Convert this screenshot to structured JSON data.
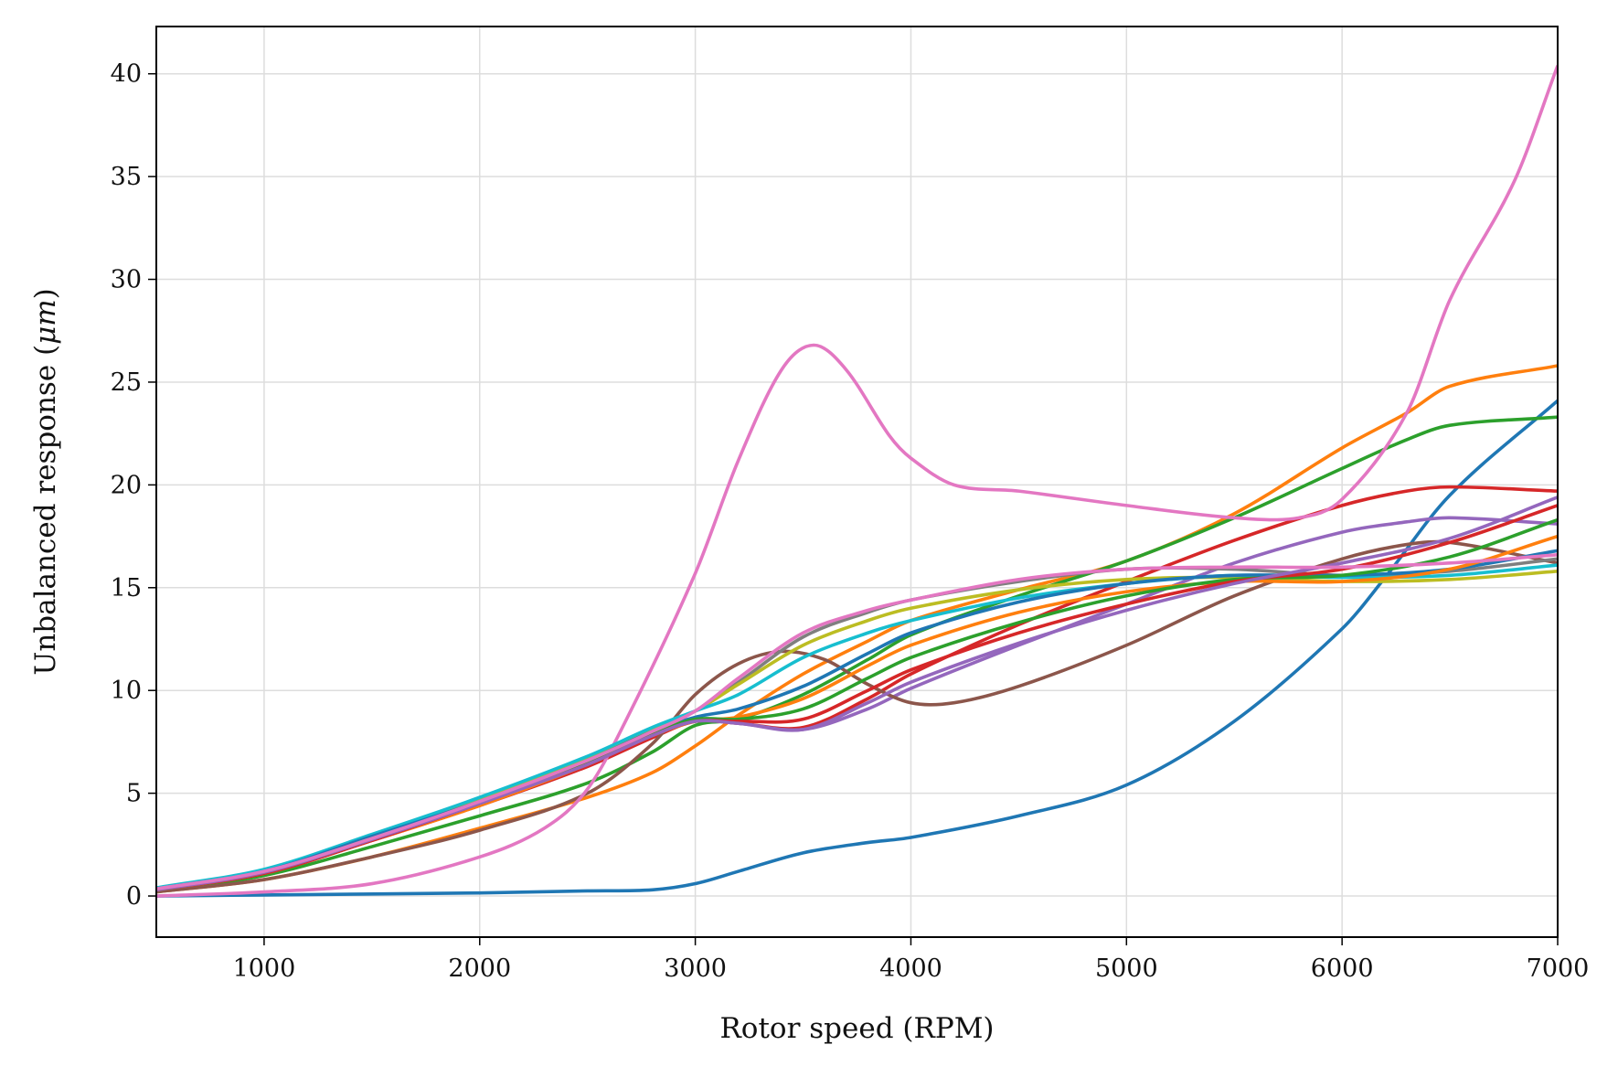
{
  "chart_data": {
    "type": "line",
    "title": "",
    "xlabel": "Rotor speed (RPM)",
    "ylabel_prefix": "Unbalanced response (",
    "ylabel_unit": "μm",
    "ylabel_suffix": ")",
    "xlim": [
      500,
      7000
    ],
    "ylim": [
      -2,
      42.3
    ],
    "xticks": [
      1000,
      2000,
      3000,
      4000,
      5000,
      6000,
      7000
    ],
    "yticks": [
      0,
      5,
      10,
      15,
      20,
      25,
      30,
      35,
      40
    ],
    "grid": true,
    "legend": "none",
    "series": [
      {
        "color": "#1f77b4",
        "x": [
          500,
          1000,
          2000,
          2500,
          2800,
          3000,
          3200,
          3500,
          3800,
          4000,
          4500,
          5000,
          5500,
          6000,
          6200,
          6500,
          7000
        ],
        "y": [
          0,
          0.05,
          0.15,
          0.25,
          0.3,
          0.6,
          1.2,
          2.1,
          2.6,
          2.85,
          3.9,
          5.4,
          8.5,
          13,
          15.5,
          19.5,
          24.1
        ]
      },
      {
        "color": "#ff7f0e",
        "x": [
          500,
          1000,
          1500,
          2000,
          2500,
          2800,
          3000,
          3200,
          3500,
          3800,
          4000,
          4500,
          5000,
          5500,
          6000,
          6300,
          6500,
          7000
        ],
        "y": [
          0.2,
          0.8,
          1.9,
          3.3,
          4.8,
          6,
          7.3,
          8.8,
          10.8,
          12.4,
          13.4,
          14.9,
          16.3,
          18.6,
          21.8,
          23.5,
          24.8,
          25.8
        ]
      },
      {
        "color": "#2ca02c",
        "x": [
          500,
          1000,
          1500,
          2000,
          2500,
          2800,
          3000,
          3200,
          3500,
          3800,
          4000,
          4500,
          5000,
          5500,
          6000,
          6300,
          6500,
          7000
        ],
        "y": [
          0.25,
          1,
          2.4,
          3.9,
          5.5,
          7,
          8.3,
          8.6,
          9.8,
          11.5,
          12.7,
          14.6,
          16.3,
          18.4,
          20.8,
          22.2,
          22.9,
          23.3
        ]
      },
      {
        "color": "#d62728",
        "x": [
          500,
          1000,
          1500,
          2000,
          2500,
          2800,
          3000,
          3200,
          3500,
          3800,
          4000,
          4500,
          5000,
          5500,
          6000,
          6300,
          6500,
          7000
        ],
        "y": [
          0.3,
          1.1,
          2.7,
          4.4,
          6.3,
          7.7,
          8.5,
          8.4,
          8.2,
          9.6,
          10.8,
          13.2,
          15.3,
          17.3,
          19,
          19.7,
          19.9,
          19.7
        ]
      },
      {
        "color": "#9467bd",
        "x": [
          500,
          1000,
          1500,
          2000,
          2500,
          2800,
          3000,
          3200,
          3500,
          3800,
          4000,
          4500,
          5000,
          5500,
          6000,
          6300,
          6500,
          7000
        ],
        "y": [
          0.3,
          1.2,
          2.8,
          4.5,
          6.4,
          7.8,
          8.5,
          8.4,
          8.1,
          9.1,
          10.1,
          12.2,
          14.2,
          16.2,
          17.7,
          18.2,
          18.4,
          18.1
        ]
      },
      {
        "color": "#8c564b",
        "x": [
          500,
          1000,
          1500,
          2000,
          2500,
          2800,
          3000,
          3200,
          3400,
          3600,
          3800,
          4000,
          4200,
          4500,
          5000,
          5500,
          6000,
          6300,
          6500,
          7000
        ],
        "y": [
          0.2,
          0.8,
          1.9,
          3.2,
          5,
          7.4,
          9.8,
          11.3,
          11.9,
          11.5,
          10.3,
          9.4,
          9.4,
          10.2,
          12.2,
          14.6,
          16.4,
          17.1,
          17.2,
          16.2
        ]
      },
      {
        "color": "#e377c2",
        "x": [
          500,
          1000,
          1500,
          2000,
          2300,
          2500,
          2700,
          3000,
          3200,
          3400,
          3550,
          3700,
          3900,
          4000,
          4200,
          4500,
          5000,
          5500,
          5800,
          6000,
          6300,
          6500,
          6800,
          7000
        ],
        "y": [
          0,
          0.2,
          0.6,
          1.9,
          3.3,
          5.2,
          9,
          15.7,
          21.2,
          25.6,
          26.8,
          25.6,
          22.4,
          21.3,
          20,
          19.7,
          19,
          18.4,
          18.4,
          19.3,
          23.5,
          29,
          34.8,
          40.4
        ]
      },
      {
        "color": "#7f7f7f",
        "x": [
          500,
          1000,
          1500,
          2000,
          2500,
          2800,
          3000,
          3200,
          3500,
          3800,
          4000,
          4500,
          5000,
          5500,
          6000,
          6500,
          7000
        ],
        "y": [
          0.35,
          1.2,
          2.8,
          4.6,
          6.6,
          8,
          9,
          10.4,
          12.6,
          13.8,
          14.4,
          15.3,
          15.9,
          15.9,
          15.6,
          15.8,
          16.4
        ]
      },
      {
        "color": "#bcbd22",
        "x": [
          500,
          1000,
          1500,
          2000,
          2500,
          2800,
          3000,
          3200,
          3500,
          3800,
          4000,
          4500,
          5000,
          5500,
          6000,
          6500,
          7000
        ],
        "y": [
          0.35,
          1.25,
          2.9,
          4.7,
          6.7,
          8.1,
          9,
          10.3,
          12.2,
          13.4,
          14,
          14.9,
          15.4,
          15.5,
          15.3,
          15.4,
          15.8
        ]
      },
      {
        "color": "#17becf",
        "x": [
          500,
          1000,
          1500,
          2000,
          2500,
          2800,
          3000,
          3200,
          3500,
          3800,
          4000,
          4500,
          5000,
          5500,
          6000,
          6500,
          7000
        ],
        "y": [
          0.4,
          1.3,
          3,
          4.8,
          6.8,
          8.2,
          9,
          9.8,
          11.6,
          12.8,
          13.4,
          14.5,
          15.2,
          15.6,
          15.5,
          15.6,
          16.1
        ]
      },
      {
        "color": "#1f77b4",
        "x": [
          500,
          1000,
          1500,
          2000,
          2500,
          2800,
          3000,
          3200,
          3500,
          3800,
          4000,
          4500,
          5000,
          5500,
          6000,
          6500,
          7000
        ],
        "y": [
          0.35,
          1.2,
          2.9,
          4.6,
          6.6,
          8,
          8.7,
          9.1,
          10.2,
          11.8,
          12.8,
          14.3,
          15.2,
          15.6,
          15.6,
          15.9,
          16.8
        ]
      },
      {
        "color": "#ff7f0e",
        "x": [
          500,
          1000,
          1500,
          2000,
          2500,
          2800,
          3000,
          3200,
          3500,
          3800,
          4000,
          4500,
          5000,
          5500,
          6000,
          6500,
          7000
        ],
        "y": [
          0.3,
          1.1,
          2.7,
          4.4,
          6.4,
          7.8,
          8.5,
          8.7,
          9.6,
          11.2,
          12.2,
          13.8,
          14.8,
          15.3,
          15.3,
          15.9,
          17.5
        ]
      },
      {
        "color": "#2ca02c",
        "x": [
          500,
          1000,
          1500,
          2000,
          2500,
          2800,
          3000,
          3200,
          3500,
          3800,
          4000,
          4500,
          5000,
          5500,
          6000,
          6500,
          7000
        ],
        "y": [
          0.3,
          1.15,
          2.8,
          4.5,
          6.5,
          7.9,
          8.6,
          8.6,
          9.1,
          10.6,
          11.6,
          13.3,
          14.6,
          15.4,
          15.6,
          16.5,
          18.3
        ]
      },
      {
        "color": "#d62728",
        "x": [
          500,
          1000,
          1500,
          2000,
          2500,
          2800,
          3000,
          3200,
          3500,
          3800,
          4000,
          4500,
          5000,
          5500,
          6000,
          6500,
          7000
        ],
        "y": [
          0.3,
          1.1,
          2.7,
          4.5,
          6.4,
          7.8,
          8.5,
          8.5,
          8.6,
          10,
          11,
          12.8,
          14.2,
          15.3,
          15.9,
          17.2,
          19
        ]
      },
      {
        "color": "#9467bd",
        "x": [
          500,
          1000,
          1500,
          2000,
          2500,
          2800,
          3000,
          3200,
          3500,
          3800,
          4000,
          4500,
          5000,
          5500,
          6000,
          6500,
          7000
        ],
        "y": [
          0.3,
          1.15,
          2.75,
          4.5,
          6.4,
          7.8,
          8.5,
          8.4,
          8.1,
          9.4,
          10.4,
          12.3,
          13.9,
          15.2,
          16.2,
          17.4,
          19.4
        ]
      },
      {
        "color": "#e377c2",
        "x": [
          500,
          1000,
          1500,
          2000,
          2500,
          2800,
          3000,
          3200,
          3500,
          3800,
          4000,
          4500,
          5000,
          5500,
          6000,
          6500,
          7000
        ],
        "y": [
          0.35,
          1.2,
          2.8,
          4.6,
          6.6,
          8,
          9,
          10.6,
          12.8,
          13.9,
          14.4,
          15.4,
          15.9,
          16,
          16,
          16.2,
          16.6
        ]
      }
    ]
  }
}
